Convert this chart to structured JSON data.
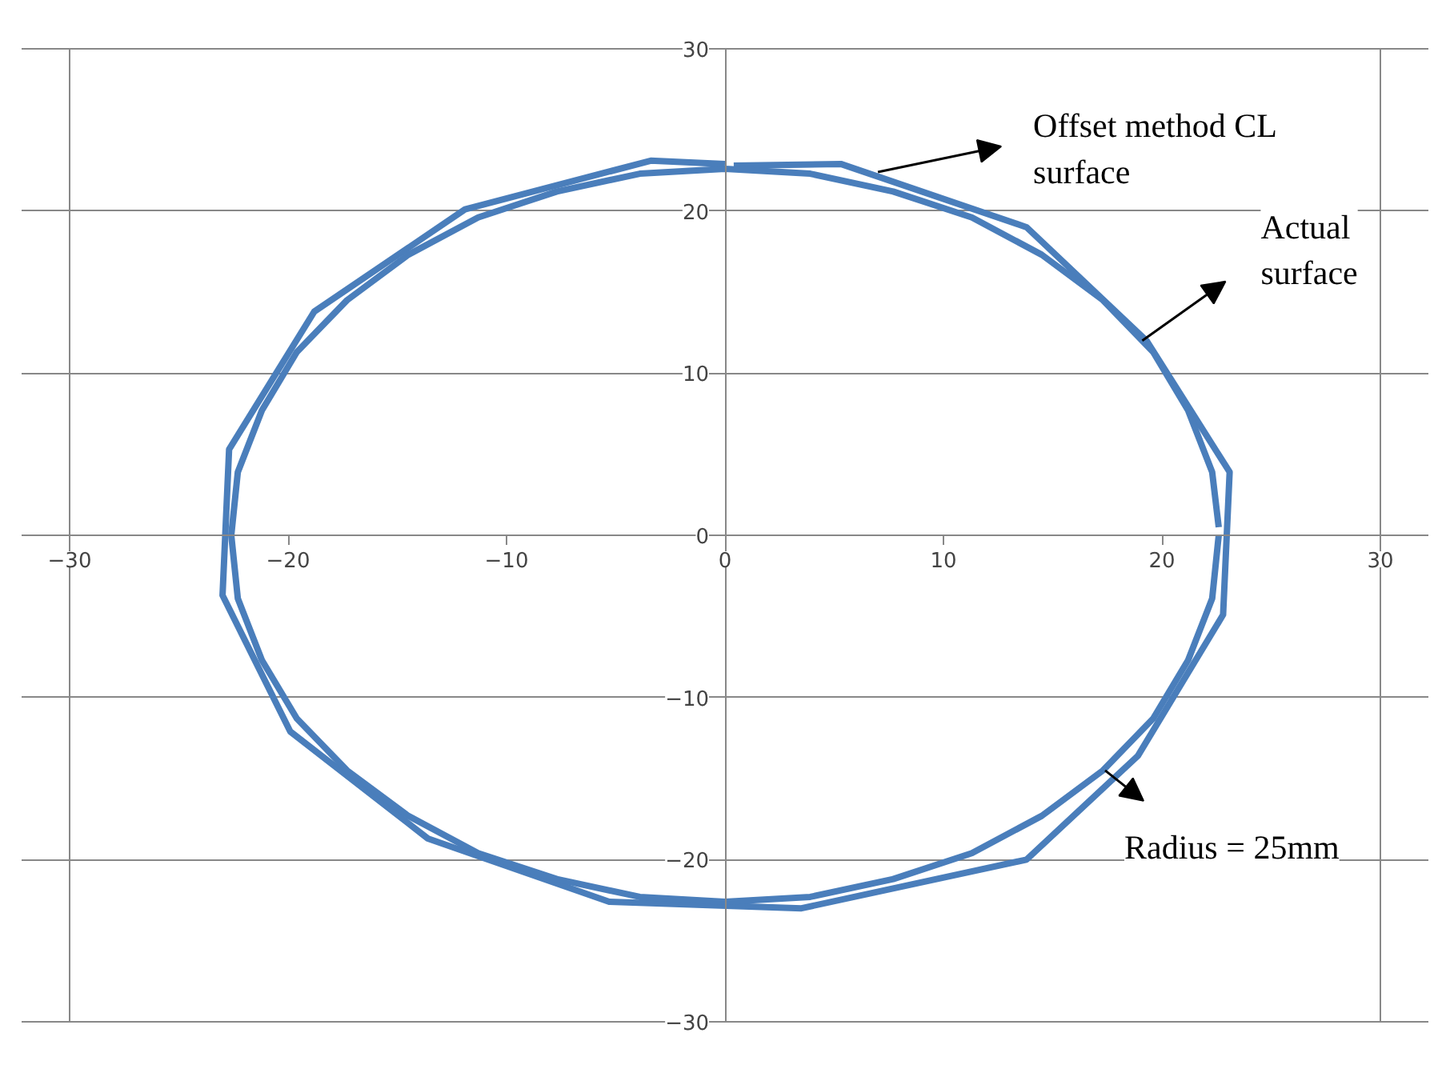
{
  "chart_data": {
    "type": "line",
    "xlim": [
      -30,
      30
    ],
    "ylim": [
      -30,
      30
    ],
    "xticks": [
      -30,
      -20,
      -10,
      0,
      10,
      20,
      30
    ],
    "yticks": [
      -30,
      -20,
      -10,
      0,
      10,
      20,
      30
    ],
    "grid": "y",
    "marker": "none",
    "line_style": "solid",
    "series": [
      {
        "color": "#4a7ebb",
        "x": [
          0.4,
          5.3,
          13.8,
          19.3,
          23.1,
          22.8,
          18.9,
          13.8,
          3.5,
          -5.3,
          -13.6,
          -19.9,
          -23.0,
          -22.7,
          -18.8,
          -11.9,
          -3.4,
          0.0
        ],
        "values": [
          22.8,
          22.9,
          19.0,
          12.0,
          3.9,
          -4.9,
          -13.6,
          -20.0,
          -23.0,
          -22.6,
          -18.7,
          -12.1,
          -3.7,
          5.3,
          13.8,
          20.1,
          23.1,
          22.9
        ]
      },
      {
        "color": "#4a7ebb",
        "x": [
          22.6,
          22.3,
          21.2,
          19.6,
          17.3,
          14.5,
          11.3,
          7.7,
          3.9,
          0.0,
          -3.9,
          -7.7,
          -11.3,
          -14.5,
          -17.3,
          -19.6,
          -21.2,
          -22.3,
          -22.6,
          -22.3,
          -21.2,
          -19.6,
          -17.3,
          -14.5,
          -11.3,
          -7.7,
          -3.9,
          0.0,
          3.9,
          7.7,
          11.3,
          14.5,
          17.3,
          19.6,
          21.2,
          22.3,
          22.6
        ],
        "values": [
          0.5,
          3.9,
          7.7,
          11.3,
          14.5,
          17.3,
          19.6,
          21.2,
          22.3,
          22.6,
          22.3,
          21.2,
          19.6,
          17.3,
          14.5,
          11.3,
          7.7,
          3.9,
          0.0,
          -3.9,
          -7.7,
          -11.3,
          -14.5,
          -17.3,
          -19.6,
          -21.2,
          -22.3,
          -22.6,
          -22.3,
          -21.2,
          -19.6,
          -17.3,
          -14.5,
          -11.3,
          -7.7,
          -3.9,
          0.0
        ]
      }
    ],
    "annotations": [
      {
        "text": "Offset method CL\nsurface",
        "x": 7.0,
        "y": 22.4
      },
      {
        "text": "Actual\nsurface",
        "x": 19.1,
        "y": 12.0
      },
      {
        "text": "Radius = 25mm",
        "x": 17.4,
        "y": -14.5
      }
    ]
  }
}
